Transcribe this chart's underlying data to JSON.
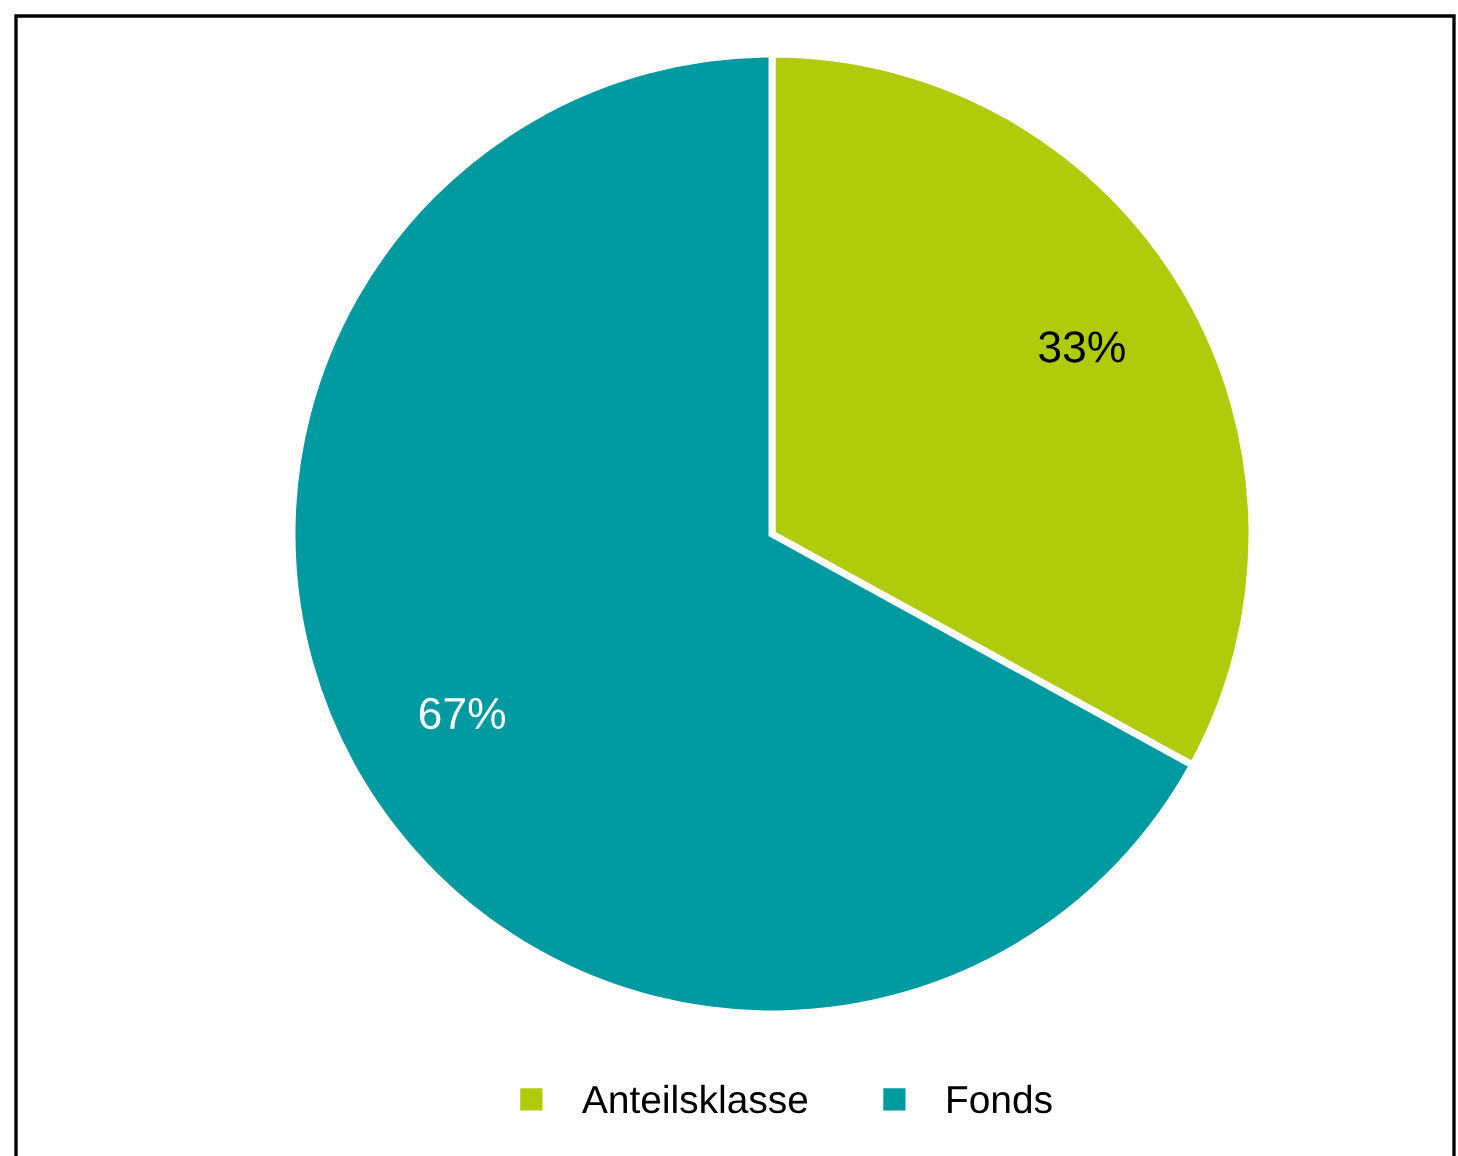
{
  "chart_data": {
    "type": "pie",
    "categories": [
      "Anteilsklasse",
      "Fonds"
    ],
    "values": [
      33,
      67
    ],
    "colors": [
      "#b0cb0b",
      "#009aa0"
    ],
    "value_labels": [
      "33%",
      "67%"
    ],
    "legend": "bottom"
  }
}
